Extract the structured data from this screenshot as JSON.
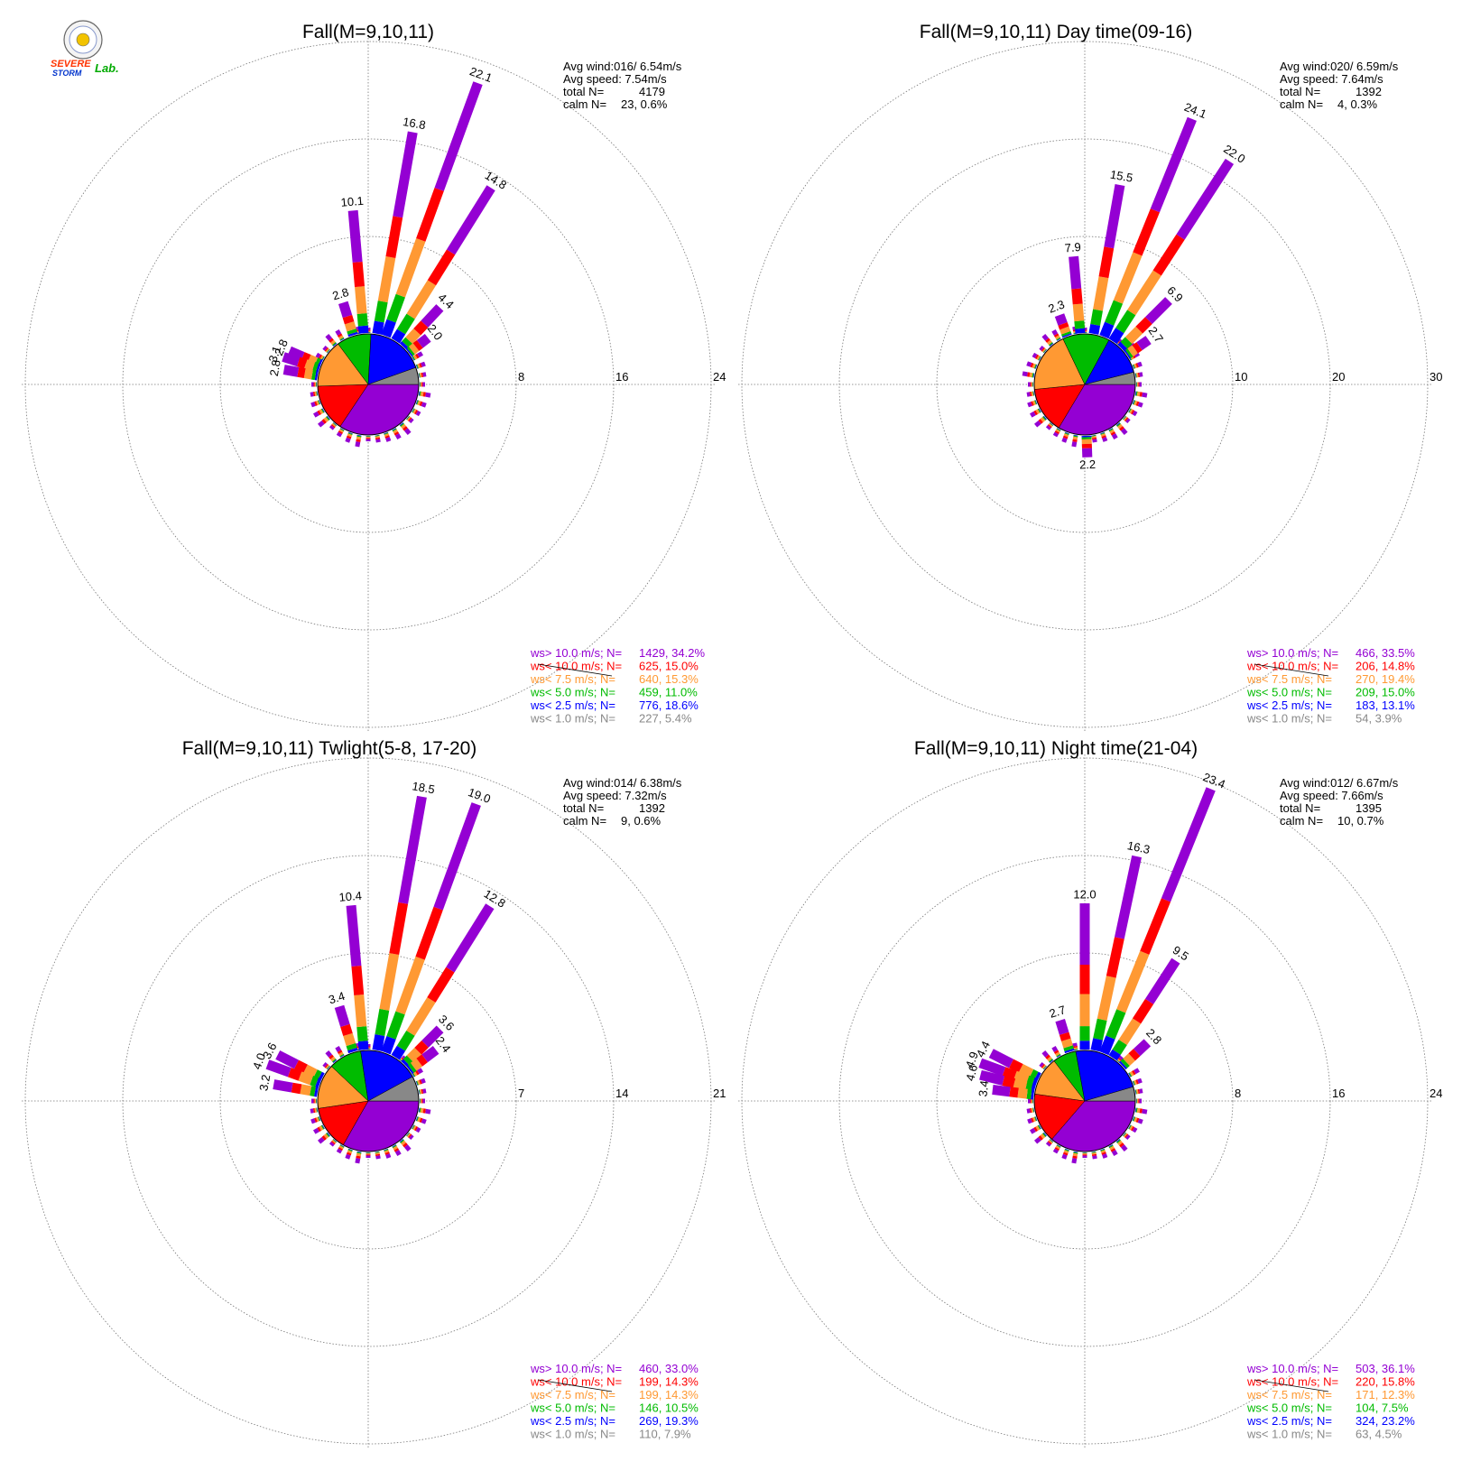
{
  "colors": {
    "gt10": "#9400d3",
    "lt10": "#ff0000",
    "lt7_5": "#ff9933",
    "lt5": "#00bb00",
    "lt2_5": "#0000ff",
    "lt1": "#888888"
  },
  "logo": {
    "line1": "SEVERE",
    "line2": "STORM",
    "line3": "Lab."
  },
  "chart_data": [
    {
      "type": "windrose",
      "title": "Fall(M=9,10,11)",
      "stats": {
        "avg_wind": "Avg wind:016/ 6.54m/s",
        "avg_speed": "Avg speed: 7.54m/s",
        "total_label": "total N=",
        "total_value": "4179",
        "calm_label": "calm N=",
        "calm_value": "23,   0.6%"
      },
      "rings": [
        "8",
        "16",
        "24"
      ],
      "ring_values": [
        8,
        16,
        24
      ],
      "directions_deg": [
        0,
        22.5,
        45
      ],
      "highlighted_bars": [
        {
          "dir": 355,
          "value": 10.1,
          "label": "10.1"
        },
        {
          "dir": 10,
          "value": 16.8,
          "label": "16.8"
        },
        {
          "dir": 20,
          "value": 22.1,
          "label": "22.1"
        },
        {
          "dir": 32,
          "value": 14.8,
          "label": "14.8"
        },
        {
          "dir": 43,
          "value": 4.4,
          "label": "4.4"
        },
        {
          "dir": 52,
          "value": 2.0,
          "label": "2.0"
        },
        {
          "dir": 343,
          "value": 2.8,
          "label": "2.8"
        },
        {
          "dir": 293,
          "value": 2.8,
          "label": "2.8"
        },
        {
          "dir": 288,
          "value": 3.1,
          "label": "3.1"
        },
        {
          "dir": 280,
          "value": 2.8,
          "label": "2.8"
        }
      ],
      "pie": [
        34.2,
        15.0,
        15.3,
        11.0,
        18.6,
        5.4
      ],
      "legend": [
        {
          "key": "gt10",
          "label": "ws> 10.0 m/s; N=",
          "value": "1429, 34.2%"
        },
        {
          "key": "lt10",
          "label": "ws< 10.0 m/s; N=",
          "value": " 625, 15.0%"
        },
        {
          "key": "lt7_5",
          "label": "ws<  7.5 m/s; N=",
          "value": " 640, 15.3%"
        },
        {
          "key": "lt5",
          "label": "ws<  5.0 m/s; N=",
          "value": " 459, 11.0%"
        },
        {
          "key": "lt2_5",
          "label": "ws<  2.5 m/s; N=",
          "value": " 776, 18.6%"
        },
        {
          "key": "lt1",
          "label": "ws<  1.0 m/s; N=",
          "value": " 227,  5.4%"
        }
      ]
    },
    {
      "type": "windrose",
      "title": "Fall(M=9,10,11) Day time(09-16)",
      "stats": {
        "avg_wind": "Avg wind:020/ 6.59m/s",
        "avg_speed": "Avg speed: 7.64m/s",
        "total_label": "total N=",
        "total_value": "1392",
        "calm_label": "calm N=",
        "calm_value": "4,   0.3%"
      },
      "rings": [
        "10",
        "20",
        "30"
      ],
      "ring_values": [
        10,
        20,
        30
      ],
      "highlighted_bars": [
        {
          "dir": 355,
          "value": 7.9,
          "label": "7.9"
        },
        {
          "dir": 10,
          "value": 15.5,
          "label": "15.5"
        },
        {
          "dir": 22,
          "value": 24.1,
          "label": "24.1"
        },
        {
          "dir": 33,
          "value": 22.0,
          "label": "22.0"
        },
        {
          "dir": 45,
          "value": 6.9,
          "label": "6.9"
        },
        {
          "dir": 55,
          "value": 2.7,
          "label": "2.7"
        },
        {
          "dir": 340,
          "value": 2.3,
          "label": "2.3"
        },
        {
          "dir": 178,
          "value": 2.2,
          "label": "2.2"
        }
      ],
      "pie": [
        33.5,
        14.8,
        19.4,
        15.0,
        13.1,
        3.9
      ],
      "legend": [
        {
          "key": "gt10",
          "label": "ws> 10.0 m/s; N=",
          "value": " 466, 33.5%"
        },
        {
          "key": "lt10",
          "label": "ws< 10.0 m/s; N=",
          "value": " 206, 14.8%"
        },
        {
          "key": "lt7_5",
          "label": "ws<  7.5 m/s; N=",
          "value": " 270, 19.4%"
        },
        {
          "key": "lt5",
          "label": "ws<  5.0 m/s; N=",
          "value": " 209, 15.0%"
        },
        {
          "key": "lt2_5",
          "label": "ws<  2.5 m/s; N=",
          "value": " 183, 13.1%"
        },
        {
          "key": "lt1",
          "label": "ws<  1.0 m/s; N=",
          "value": "  54,  3.9%"
        }
      ]
    },
    {
      "type": "windrose",
      "title": "Fall(M=9,10,11) Twlight(5-8, 17-20)",
      "stats": {
        "avg_wind": "Avg wind:014/ 6.38m/s",
        "avg_speed": "Avg speed: 7.32m/s",
        "total_label": "total N=",
        "total_value": "1392",
        "calm_label": "calm N=",
        "calm_value": "9,   0.6%"
      },
      "rings": [
        "7",
        "14",
        "21"
      ],
      "ring_values": [
        7,
        14,
        21
      ],
      "highlighted_bars": [
        {
          "dir": 355,
          "value": 10.4,
          "label": "10.4"
        },
        {
          "dir": 10,
          "value": 18.5,
          "label": "18.5"
        },
        {
          "dir": 20,
          "value": 19.0,
          "label": "19.0"
        },
        {
          "dir": 32,
          "value": 12.8,
          "label": "12.8"
        },
        {
          "dir": 45,
          "value": 3.6,
          "label": "3.6"
        },
        {
          "dir": 53,
          "value": 2.4,
          "label": "2.4"
        },
        {
          "dir": 343,
          "value": 3.4,
          "label": "3.4"
        },
        {
          "dir": 297,
          "value": 3.6,
          "label": "3.6"
        },
        {
          "dir": 290,
          "value": 4.0,
          "label": "4.0"
        },
        {
          "dir": 280,
          "value": 3.2,
          "label": "3.2"
        }
      ],
      "pie": [
        33.0,
        14.3,
        14.3,
        10.5,
        19.3,
        7.9
      ],
      "legend": [
        {
          "key": "gt10",
          "label": "ws> 10.0 m/s; N=",
          "value": " 460, 33.0%"
        },
        {
          "key": "lt10",
          "label": "ws< 10.0 m/s; N=",
          "value": " 199, 14.3%"
        },
        {
          "key": "lt7_5",
          "label": "ws<  7.5 m/s; N=",
          "value": " 199, 14.3%"
        },
        {
          "key": "lt5",
          "label": "ws<  5.0 m/s; N=",
          "value": " 146, 10.5%"
        },
        {
          "key": "lt2_5",
          "label": "ws<  2.5 m/s; N=",
          "value": " 269, 19.3%"
        },
        {
          "key": "lt1",
          "label": "ws<  1.0 m/s; N=",
          "value": " 110,  7.9%"
        }
      ]
    },
    {
      "type": "windrose",
      "title": "Fall(M=9,10,11) Night time(21-04)",
      "stats": {
        "avg_wind": "Avg wind:012/ 6.67m/s",
        "avg_speed": "Avg speed: 7.66m/s",
        "total_label": "total N=",
        "total_value": "1395",
        "calm_label": "calm N=",
        "calm_value": "10,   0.7%"
      },
      "rings": [
        "8",
        "16",
        "24"
      ],
      "ring_values": [
        8,
        16,
        24
      ],
      "highlighted_bars": [
        {
          "dir": 0,
          "value": 12.0,
          "label": "12.0"
        },
        {
          "dir": 12,
          "value": 16.3,
          "label": "16.3"
        },
        {
          "dir": 22,
          "value": 23.4,
          "label": "23.4"
        },
        {
          "dir": 33,
          "value": 9.5,
          "label": "9.5"
        },
        {
          "dir": 47,
          "value": 2.8,
          "label": "2.8"
        },
        {
          "dir": 343,
          "value": 2.7,
          "label": "2.7"
        },
        {
          "dir": 297,
          "value": 4.4,
          "label": "4.4"
        },
        {
          "dir": 290,
          "value": 4.9,
          "label": "4.9"
        },
        {
          "dir": 284,
          "value": 4.6,
          "label": "4.6"
        },
        {
          "dir": 277,
          "value": 3.4,
          "label": "3.4"
        }
      ],
      "pie": [
        36.1,
        15.8,
        12.3,
        7.5,
        23.2,
        4.5
      ],
      "legend": [
        {
          "key": "gt10",
          "label": "ws> 10.0 m/s; N=",
          "value": " 503, 36.1%"
        },
        {
          "key": "lt10",
          "label": "ws< 10.0 m/s; N=",
          "value": " 220, 15.8%"
        },
        {
          "key": "lt7_5",
          "label": "ws<  7.5 m/s; N=",
          "value": " 171, 12.3%"
        },
        {
          "key": "lt5",
          "label": "ws<  5.0 m/s; N=",
          "value": " 104,  7.5%"
        },
        {
          "key": "lt2_5",
          "label": "ws<  2.5 m/s; N=",
          "value": " 324, 23.2%"
        },
        {
          "key": "lt1",
          "label": "ws<  1.0 m/s; N=",
          "value": "  63,  4.5%"
        }
      ]
    }
  ]
}
